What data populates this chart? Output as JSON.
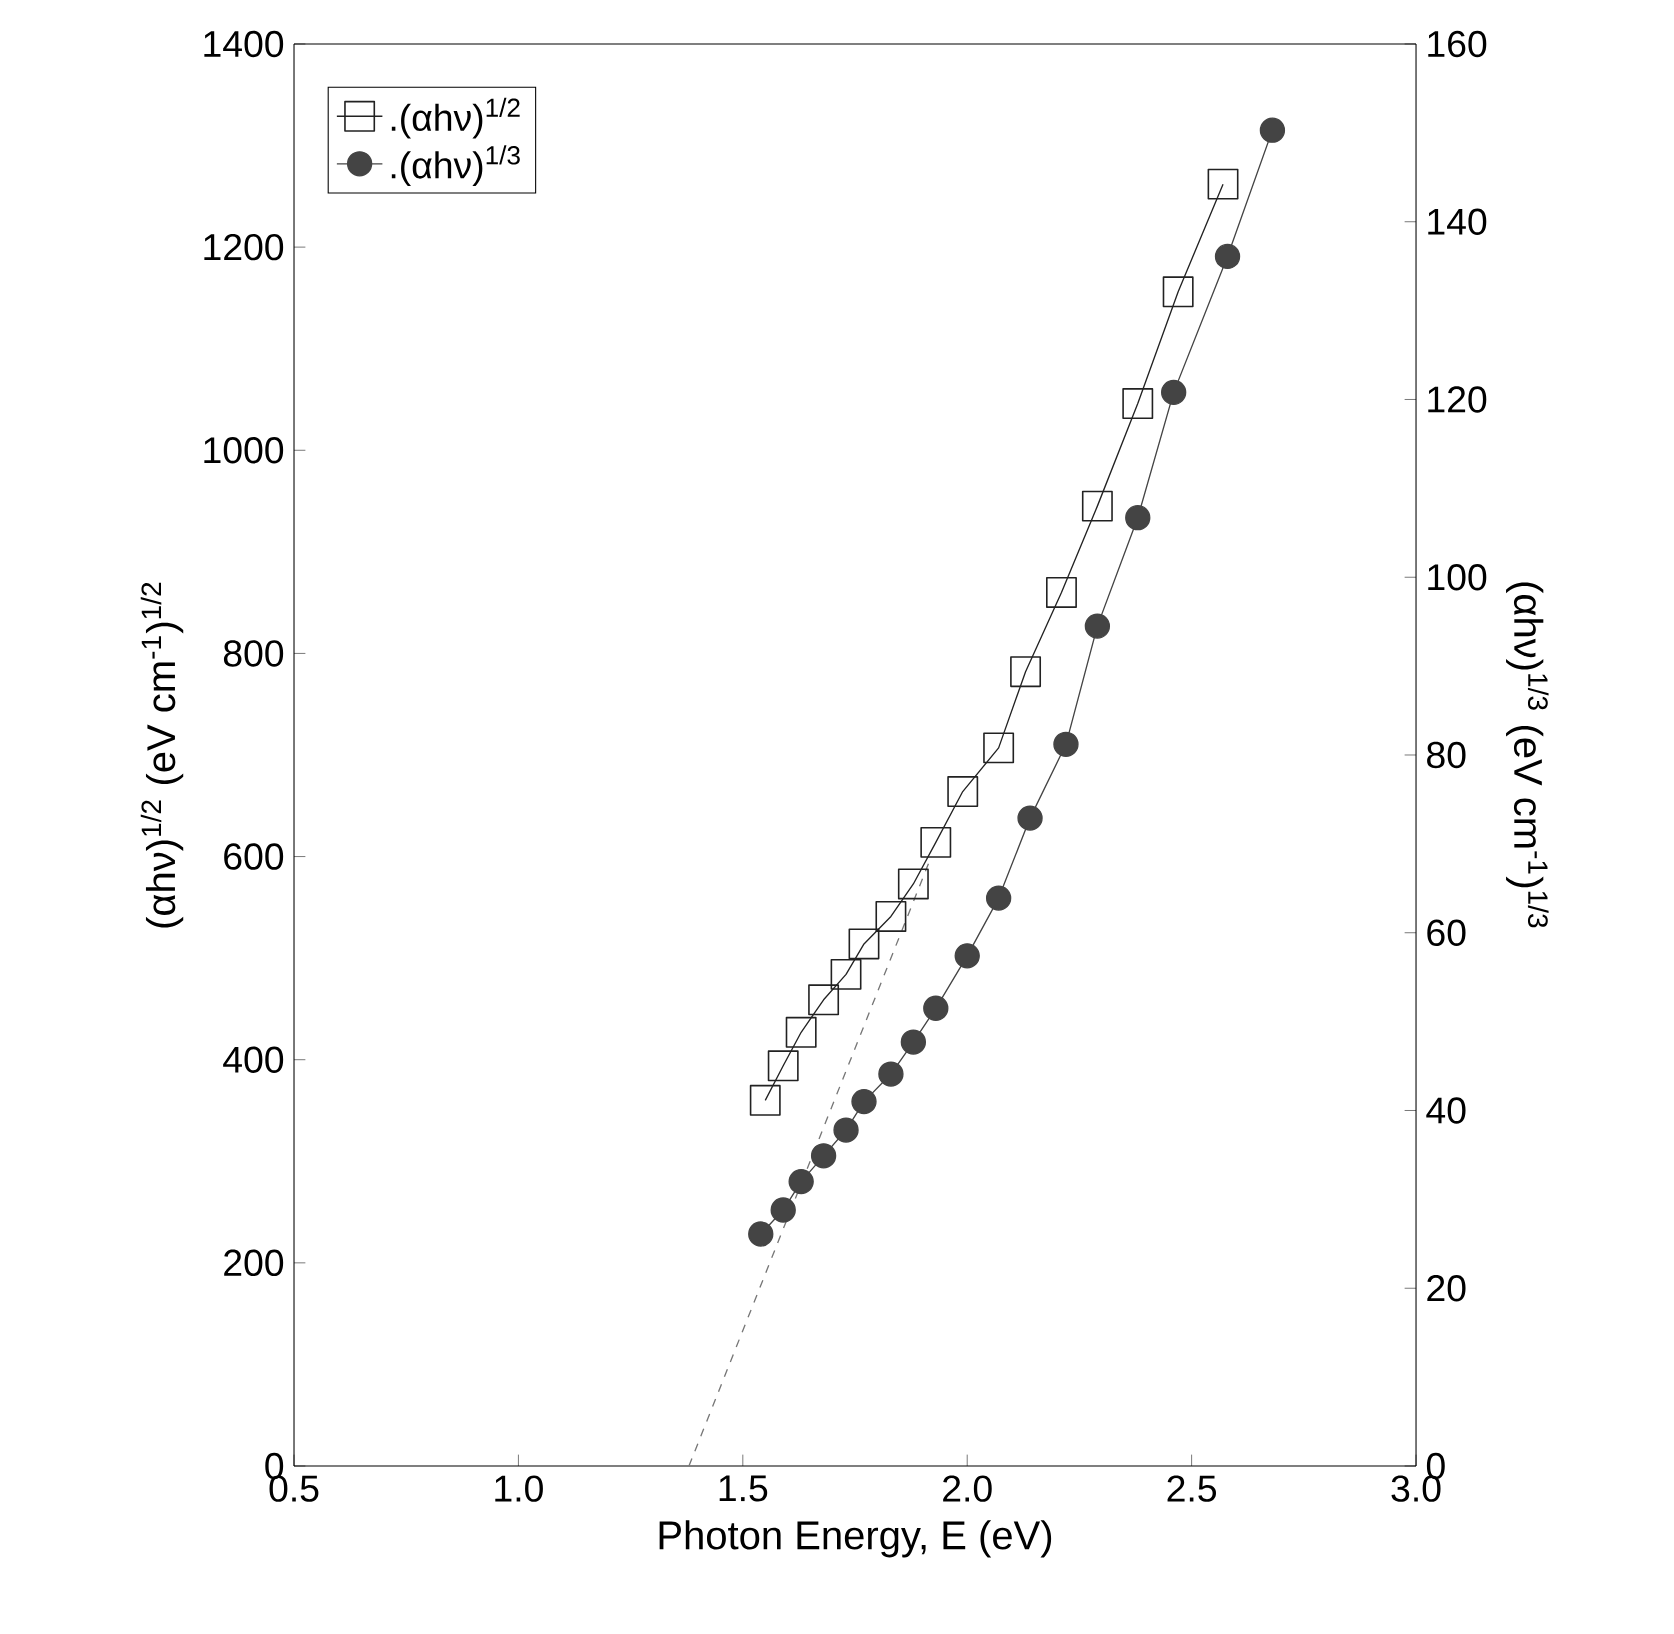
{
  "chart_data": {
    "type": "line",
    "xlabel": "Photon Energy, E (eV)",
    "ylabel": "(αhν)$^{1/2}$ (eV cm$^{-1}$)$^{1/2}$",
    "y2label": "(αhν)$^{1/3}$ (eV cm$^{-1}$)$^{1/3}$",
    "xlim": [
      0.5,
      3.0
    ],
    "xticks": [
      {
        "value": 0.5,
        "label": "0.5"
      },
      {
        "value": 1.0,
        "label": "1.0"
      },
      {
        "value": 1.5,
        "label": "1.5"
      },
      {
        "value": 2.0,
        "label": "2.0"
      },
      {
        "value": 2.5,
        "label": "2.5"
      },
      {
        "value": 3.0,
        "label": "3.0"
      }
    ],
    "ylim": [
      0,
      1400
    ],
    "yticks": [
      0,
      200,
      400,
      600,
      800,
      1000,
      1200,
      1400
    ],
    "y2lim": [
      0,
      160
    ],
    "y2ticks": [
      0,
      20,
      40,
      60,
      80,
      100,
      120,
      140,
      160
    ],
    "legend": "top left",
    "grid": false,
    "series": [
      {
        "name": ".(αhν)$^{1/2}$",
        "color": "#222222",
        "marker": "square",
        "x": [
          1.55,
          1.59,
          1.63,
          1.68,
          1.73,
          1.77,
          1.83,
          1.88,
          1.93,
          1.99,
          2.07,
          2.13,
          2.21,
          2.29,
          2.38,
          2.47,
          2.57
        ],
        "values": [
          360,
          394,
          427,
          459,
          484,
          514,
          541,
          573,
          614,
          664,
          707,
          782,
          860,
          945,
          1046,
          1156,
          1262
        ]
      },
      {
        "name": ".(αhν)$^{1/3}$",
        "color": "#444444",
        "marker": "circle",
        "axis": "y2",
        "x": [
          1.54,
          1.59,
          1.63,
          1.68,
          1.73,
          1.77,
          1.83,
          1.88,
          1.93,
          2.0,
          2.07,
          2.14,
          2.22,
          2.29,
          2.38,
          2.46,
          2.58,
          2.68
        ],
        "values": [
          26.1,
          28.8,
          32.0,
          34.9,
          37.8,
          41.0,
          44.1,
          47.7,
          51.5,
          57.4,
          63.9,
          72.9,
          81.2,
          94.5,
          106.7,
          120.8,
          136.1,
          150.3
        ]
      },
      {
        "color": "#777777",
        "marker": "none",
        "line_style": "dashed",
        "x": [
          1.38,
          1.92
        ],
        "values": [
          0,
          600
        ]
      }
    ]
  }
}
